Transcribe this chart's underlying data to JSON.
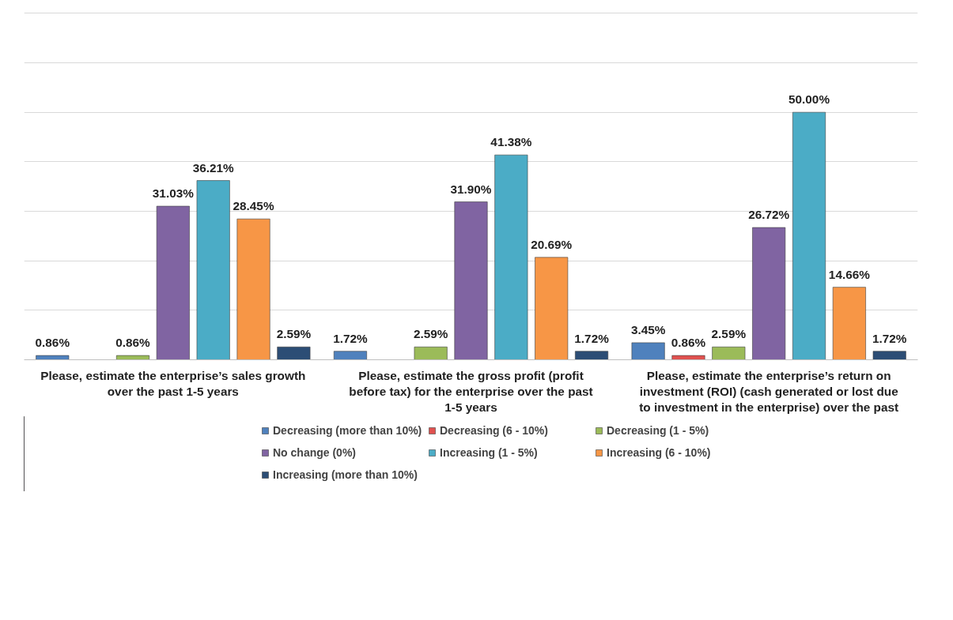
{
  "chart_data": {
    "type": "bar",
    "categories": [
      "Please, estimate the enterprise’s sales growth over the past 1-5 years",
      "Please, estimate the gross profit (profit before tax) for the enterprise over the past 1-5 years",
      "Please, estimate the enterprise’s return on investment (ROI) (cash generated or lost due to investment in the enterprise) over the past"
    ],
    "series": [
      {
        "name": "Decreasing (more than 10%)",
        "color": "#4f81bd",
        "values": [
          0.86,
          1.72,
          3.45
        ],
        "value_labels": [
          "0.86%",
          "1.72%",
          "3.45%"
        ]
      },
      {
        "name": "Decreasing (6 - 10%)",
        "color": "#e0514f",
        "values": [
          null,
          null,
          0.86
        ],
        "value_labels": [
          null,
          null,
          "0.86%"
        ]
      },
      {
        "name": "Decreasing (1 - 5%)",
        "color": "#9bbb59",
        "values": [
          0.86,
          2.59,
          2.59
        ],
        "value_labels": [
          "0.86%",
          "2.59%",
          "2.59%"
        ]
      },
      {
        "name": "No change (0%)",
        "color": "#8064a2",
        "values": [
          31.03,
          31.9,
          26.72
        ],
        "value_labels": [
          "31.03%",
          "31.90%",
          "26.72%"
        ]
      },
      {
        "name": "Increasing (1 - 5%)",
        "color": "#4bacc6",
        "values": [
          36.21,
          41.38,
          50.0
        ],
        "value_labels": [
          "36.21%",
          "41.38%",
          "50.00%"
        ]
      },
      {
        "name": "Increasing (6 - 10%)",
        "color": "#f79646",
        "values": [
          28.45,
          20.69,
          14.66
        ],
        "value_labels": [
          "28.45%",
          "20.69%",
          "14.66%"
        ]
      },
      {
        "name": "Increasing (more than 10%)",
        "color": "#2c4d75",
        "values": [
          2.59,
          1.72,
          1.72
        ],
        "value_labels": [
          "2.59%",
          "1.72%",
          "1.72%"
        ]
      }
    ],
    "yticks": [
      {
        "value": 0,
        "label": null
      },
      {
        "value": 10,
        "label": null
      },
      {
        "value": 20,
        "label": null
      },
      {
        "value": 30,
        "label": null
      },
      {
        "value": 40,
        "label": null
      },
      {
        "value": 50,
        "label": null
      },
      {
        "value": 60,
        "label": null
      },
      {
        "value": 70,
        "label": null
      }
    ],
    "tick_labels": "x",
    "grid": "y",
    "legend": "bottom"
  }
}
